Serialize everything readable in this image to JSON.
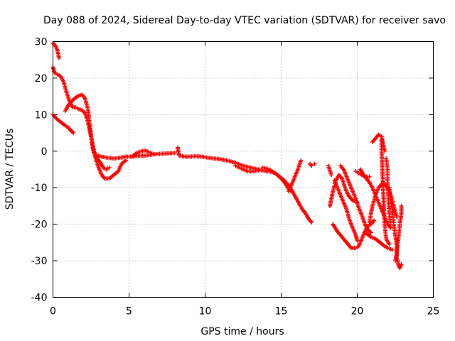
{
  "chart_data": {
    "type": "scatter",
    "title": "Day 088 of 2024, Sidereal Day-to-day VTEC variation (SDTVAR) for receiver savo",
    "xlabel": "GPS time / hours",
    "ylabel": "SDTVAR / TECUs",
    "xlim": [
      0,
      25
    ],
    "ylim": [
      -40,
      30
    ],
    "xticks": [
      0,
      5,
      10,
      15,
      20,
      25
    ],
    "yticks": [
      -40,
      -30,
      -20,
      -10,
      0,
      10,
      20,
      30
    ],
    "grid": true,
    "marker": "plus",
    "series": [
      {
        "name": "SDTVAR",
        "color": "#ff0000",
        "segments": [
          [
            [
              0.0,
              29.5
            ],
            [
              0.15,
              29
            ],
            [
              0.3,
              27.5
            ],
            [
              0.4,
              25.5
            ]
          ],
          [
            [
              0.0,
              23
            ],
            [
              0.1,
              21.5
            ],
            [
              0.3,
              21
            ],
            [
              0.5,
              20.5
            ],
            [
              0.7,
              19
            ],
            [
              0.9,
              16
            ],
            [
              1.1,
              13.5
            ],
            [
              1.3,
              12
            ],
            [
              1.5,
              12
            ],
            [
              1.7,
              11.5
            ],
            [
              1.9,
              11.2
            ],
            [
              2.1,
              10.5
            ],
            [
              2.3,
              8
            ],
            [
              2.5,
              4
            ],
            [
              2.7,
              0
            ],
            [
              2.9,
              -2
            ],
            [
              3.1,
              -3
            ],
            [
              3.3,
              -4.5
            ],
            [
              3.5,
              -5
            ],
            [
              3.7,
              -4.5
            ]
          ],
          [
            [
              0.0,
              10
            ],
            [
              0.2,
              9
            ],
            [
              0.5,
              8
            ],
            [
              0.8,
              7
            ],
            [
              1.0,
              6.5
            ],
            [
              1.2,
              5.5
            ],
            [
              1.35,
              5
            ]
          ],
          [
            [
              0.8,
              11
            ],
            [
              1.0,
              12.5
            ],
            [
              1.3,
              14
            ],
            [
              1.6,
              15
            ],
            [
              1.9,
              15.5
            ],
            [
              2.1,
              14.5
            ],
            [
              2.3,
              11.5
            ],
            [
              2.4,
              8
            ],
            [
              2.5,
              4.5
            ],
            [
              2.6,
              1
            ],
            [
              2.8,
              -2
            ],
            [
              3.0,
              -4.5
            ],
            [
              3.2,
              -6.5
            ],
            [
              3.4,
              -7.5
            ],
            [
              3.7,
              -7.5
            ],
            [
              4.0,
              -6.5
            ],
            [
              4.3,
              -5.5
            ],
            [
              4.5,
              -3.5
            ],
            [
              4.8,
              -2.5
            ]
          ],
          [
            [
              2.9,
              -1.2
            ],
            [
              3.2,
              -1.5
            ],
            [
              3.6,
              -1.8
            ],
            [
              4.0,
              -2
            ],
            [
              4.4,
              -1.8
            ],
            [
              4.8,
              -1.5
            ],
            [
              5.2,
              -1.5
            ],
            [
              5.6,
              -1.3
            ],
            [
              6.0,
              -1.2
            ],
            [
              6.4,
              -1
            ],
            [
              6.8,
              -0.8
            ],
            [
              7.2,
              -0.7
            ],
            [
              7.6,
              -0.6
            ],
            [
              8.0,
              -0.5
            ]
          ],
          [
            [
              5.2,
              -1.5
            ],
            [
              5.5,
              -0.5
            ],
            [
              5.8,
              0
            ],
            [
              6.1,
              0.2
            ],
            [
              6.4,
              -0.5
            ],
            [
              6.6,
              -0.8
            ]
          ],
          [
            [
              8.2,
              1
            ],
            [
              8.25,
              -0.5
            ],
            [
              8.3,
              -1.2
            ],
            [
              8.6,
              -1.5
            ],
            [
              9.0,
              -1.5
            ],
            [
              9.4,
              -1.4
            ],
            [
              9.8,
              -1.5
            ],
            [
              10.2,
              -1.8
            ],
            [
              10.6,
              -2
            ],
            [
              11.0,
              -2.2
            ],
            [
              11.4,
              -2.5
            ]
          ],
          [
            [
              11.5,
              -2.6
            ],
            [
              12.0,
              -3.2
            ],
            [
              12.5,
              -4
            ],
            [
              13.0,
              -4.5
            ],
            [
              13.5,
              -5
            ],
            [
              14.0,
              -5.5
            ],
            [
              14.3,
              -5.6
            ],
            [
              14.6,
              -6
            ],
            [
              14.9,
              -7
            ],
            [
              15.2,
              -8
            ],
            [
              15.4,
              -9
            ],
            [
              15.6,
              -10
            ]
          ],
          [
            [
              12.0,
              -4
            ],
            [
              12.4,
              -4.8
            ],
            [
              12.8,
              -5.5
            ],
            [
              13.2,
              -5.5
            ],
            [
              13.6,
              -5.2
            ]
          ],
          [
            [
              13.8,
              -4.5
            ],
            [
              14.2,
              -5
            ],
            [
              14.6,
              -6
            ],
            [
              15.0,
              -7.5
            ],
            [
              15.3,
              -9
            ],
            [
              15.5,
              -10.5
            ],
            [
              15.7,
              -11
            ]
          ],
          [
            [
              15.5,
              -11
            ],
            [
              15.7,
              -9
            ],
            [
              15.9,
              -7
            ],
            [
              16.1,
              -5
            ],
            [
              16.3,
              -2.5
            ]
          ],
          [
            [
              15.6,
              -10
            ],
            [
              15.8,
              -11.5
            ],
            [
              16.0,
              -13
            ],
            [
              16.2,
              -14.5
            ],
            [
              16.4,
              -16
            ],
            [
              16.6,
              -17
            ],
            [
              16.8,
              -18.5
            ],
            [
              17.0,
              -19.5
            ]
          ],
          [
            [
              16.9,
              -3.5
            ],
            [
              17.0,
              -4
            ]
          ],
          [
            [
              17.2,
              -3.5
            ]
          ],
          [
            [
              18.1,
              -4
            ],
            [
              18.3,
              -6.5
            ]
          ],
          [
            [
              18.2,
              -15
            ],
            [
              18.4,
              -11
            ],
            [
              18.6,
              -8
            ],
            [
              18.8,
              -6.5
            ],
            [
              19.0,
              -7.5
            ],
            [
              19.2,
              -10
            ],
            [
              19.4,
              -12
            ],
            [
              19.7,
              -13.5
            ],
            [
              20.0,
              -14
            ]
          ],
          [
            [
              18.5,
              -8
            ],
            [
              18.7,
              -10
            ],
            [
              18.9,
              -12
            ],
            [
              19.1,
              -14
            ],
            [
              19.3,
              -16
            ],
            [
              19.5,
              -19
            ],
            [
              19.7,
              -21
            ],
            [
              19.9,
              -23
            ],
            [
              20.0,
              -24.5
            ]
          ],
          [
            [
              18.9,
              -4
            ],
            [
              19.1,
              -5
            ],
            [
              19.3,
              -7
            ],
            [
              19.5,
              -9
            ],
            [
              19.7,
              -11
            ],
            [
              19.9,
              -13
            ],
            [
              20.1,
              -15.5
            ],
            [
              20.3,
              -17.5
            ],
            [
              20.5,
              -20
            ],
            [
              20.7,
              -21.5
            ],
            [
              20.9,
              -22.3
            ]
          ],
          [
            [
              18.4,
              -20
            ],
            [
              18.7,
              -22
            ],
            [
              19.0,
              -23.5
            ],
            [
              19.3,
              -25
            ],
            [
              19.6,
              -26.5
            ],
            [
              19.9,
              -26.5
            ],
            [
              20.1,
              -26
            ],
            [
              20.3,
              -24
            ],
            [
              20.5,
              -22
            ],
            [
              20.7,
              -20.5
            ],
            [
              20.9,
              -20
            ],
            [
              21.1,
              -19
            ]
          ],
          [
            [
              19.9,
              -5.5
            ],
            [
              20.2,
              -6.3
            ],
            [
              20.5,
              -7
            ],
            [
              20.8,
              -7
            ]
          ],
          [
            [
              20.2,
              -5
            ],
            [
              20.5,
              -7
            ],
            [
              20.8,
              -8.5
            ],
            [
              21.0,
              -10
            ],
            [
              21.2,
              -12
            ],
            [
              21.4,
              -14
            ],
            [
              21.6,
              -16
            ],
            [
              21.8,
              -18
            ],
            [
              22.0,
              -20
            ],
            [
              22.2,
              -21
            ]
          ],
          [
            [
              20.8,
              -20
            ],
            [
              20.9,
              -17
            ],
            [
              21.0,
              -15
            ],
            [
              21.2,
              -12
            ],
            [
              21.4,
              -10
            ],
            [
              21.6,
              -9
            ],
            [
              21.8,
              -9
            ],
            [
              22.0,
              -10
            ],
            [
              22.2,
              -12
            ],
            [
              22.4,
              -15
            ],
            [
              22.6,
              -18
            ]
          ],
          [
            [
              20.6,
              -22.5
            ],
            [
              20.9,
              -23.5
            ],
            [
              21.2,
              -24
            ],
            [
              21.5,
              -25
            ],
            [
              21.8,
              -26
            ],
            [
              22.0,
              -26.5
            ],
            [
              22.3,
              -27
            ]
          ],
          [
            [
              21.0,
              2.5
            ],
            [
              21.2,
              3.5
            ],
            [
              21.4,
              4.5
            ],
            [
              21.6,
              4
            ],
            [
              21.7,
              2
            ],
            [
              21.8,
              0
            ]
          ],
          [
            [
              21.6,
              3
            ],
            [
              21.6,
              0
            ],
            [
              21.65,
              -5
            ],
            [
              21.7,
              -10
            ],
            [
              21.75,
              -15
            ],
            [
              21.8,
              -20
            ],
            [
              21.9,
              -24
            ],
            [
              22.1,
              -25.5
            ]
          ],
          [
            [
              21.9,
              -2
            ],
            [
              22.0,
              -5
            ],
            [
              22.0,
              -9
            ],
            [
              22.05,
              -13
            ],
            [
              22.1,
              -17
            ],
            [
              22.2,
              -20
            ]
          ],
          [
            [
              22.1,
              -10
            ],
            [
              22.2,
              -13
            ],
            [
              22.3,
              -16
            ],
            [
              22.4,
              -20
            ],
            [
              22.5,
              -23
            ],
            [
              22.6,
              -26
            ],
            [
              22.6,
              -29
            ],
            [
              22.7,
              -31
            ],
            [
              22.8,
              -32
            ],
            [
              22.9,
              -31
            ]
          ],
          [
            [
              22.5,
              -30
            ],
            [
              22.6,
              -28
            ],
            [
              22.7,
              -24
            ],
            [
              22.8,
              -20
            ],
            [
              22.9,
              -17
            ],
            [
              22.9,
              -15
            ]
          ]
        ]
      }
    ]
  }
}
